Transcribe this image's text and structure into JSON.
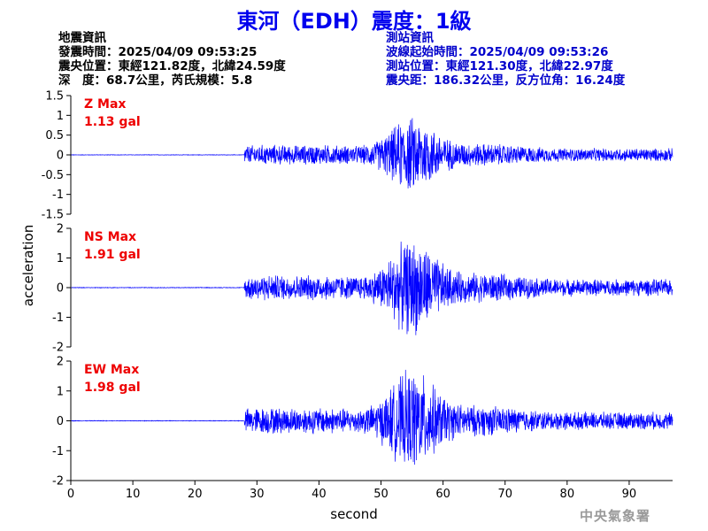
{
  "title": "東河（EDH）震度：1級",
  "quake_info": {
    "heading": "地震資訊",
    "origin_time": "發震時間：2025/04/09 09:53:25",
    "epicenter": "震央位置：東經121.82度，北緯24.59度",
    "depth_magnitude": "深　度：68.7公里，芮氏規模：5.8"
  },
  "station_info": {
    "heading": "測站資訊",
    "wave_start": "波線起始時間：2025/04/09 09:53:26",
    "station_location": "測站位置：東經121.30度，北緯22.97度",
    "distance_azimuth": "震央距：186.32公里，反方位角：16.24度"
  },
  "agency": "中央氣象署",
  "colors": {
    "title": "#0000ee",
    "trace": "#0000ff",
    "max_label": "#ee0000",
    "station_text": "#0000cc",
    "axis": "#000000"
  },
  "chart_data": {
    "type": "line",
    "xlabel": "second",
    "ylabel": "acceleration",
    "xlim": [
      0,
      97
    ],
    "x_ticks": [
      0,
      10,
      20,
      30,
      40,
      50,
      60,
      70,
      80,
      90
    ],
    "panels": [
      {
        "name": "Z",
        "max_title": "Z Max",
        "max_value": "1.13 gal",
        "peak": 1.13,
        "ylim": [
          -1.5,
          1.5
        ],
        "y_ticks": [
          -1.5,
          -1,
          -0.5,
          0,
          0.5,
          1,
          1.5
        ],
        "y_tick_labels": [
          "-1.5",
          "-1",
          "-0.5",
          "0",
          "0.5",
          "1",
          "1.5"
        ]
      },
      {
        "name": "NS",
        "max_title": "NS Max",
        "max_value": "1.91 gal",
        "peak": 1.91,
        "ylim": [
          -2,
          2
        ],
        "y_ticks": [
          -2,
          -1,
          0,
          1,
          2
        ],
        "y_tick_labels": [
          "-2",
          "-1",
          "0",
          "1",
          "2"
        ]
      },
      {
        "name": "EW",
        "max_title": "EW Max",
        "max_value": "1.98 gal",
        "peak": 1.98,
        "ylim": [
          -2,
          2
        ],
        "y_ticks": [
          -2,
          -1,
          0,
          1,
          2
        ],
        "y_tick_labels": [
          "-2",
          "-1",
          "0",
          "1",
          "2"
        ]
      }
    ],
    "p_arrival": 28,
    "s_arrival": 50,
    "grid": false,
    "legend": "none"
  }
}
